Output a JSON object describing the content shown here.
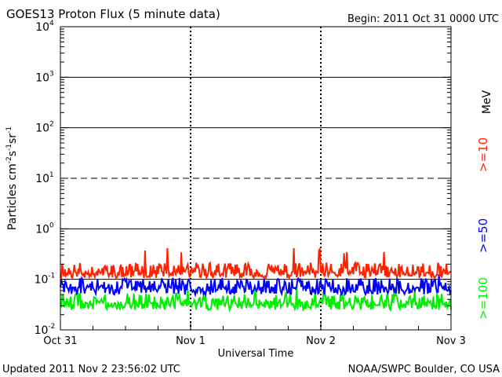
{
  "chart_data": {
    "type": "line",
    "title": "GOES13 Proton Flux (5 minute data)",
    "begin_label": "Begin: 2011 Oct 31 0000 UTC",
    "updated_label": "Updated 2011 Nov  2 23:56:02 UTC",
    "credit_label": "NOAA/SWPC Boulder, CO USA",
    "xlabel": "Universal Time",
    "ylabel_main": "Particles cm",
    "ylabel_sup1": "-2",
    "ylabel_mid1": "s",
    "ylabel_sup2": "-1",
    "ylabel_mid2": "sr",
    "ylabel_sup3": "-1",
    "y_scale": "log",
    "ylim": [
      0.01,
      10000
    ],
    "y_ticks": [
      {
        "base": "10",
        "exp": "-2"
      },
      {
        "base": "10",
        "exp": "-1"
      },
      {
        "base": "10",
        "exp": "0"
      },
      {
        "base": "10",
        "exp": "1"
      },
      {
        "base": "10",
        "exp": "2"
      },
      {
        "base": "10",
        "exp": "3"
      },
      {
        "base": "10",
        "exp": "4"
      }
    ],
    "x_ticks": [
      "Oct 31",
      "Nov 1",
      "Nov 2",
      "Nov 3"
    ],
    "xlim_days": [
      0,
      3
    ],
    "reference_lines": [
      {
        "value": 0.1,
        "style": "solid"
      },
      {
        "value": 1,
        "style": "solid"
      },
      {
        "value": 10,
        "style": "dashed"
      },
      {
        "value": 100,
        "style": "solid"
      },
      {
        "value": 1000,
        "style": "solid"
      }
    ],
    "unit_label": "MeV",
    "series": [
      {
        "name": ">=10",
        "color": "#ff2200",
        "typical": 0.13,
        "min": 0.09,
        "max": 0.42
      },
      {
        "name": ">=50",
        "color": "#0000ff",
        "typical": 0.065,
        "min": 0.04,
        "max": 0.15
      },
      {
        "name": ">=100",
        "color": "#00ee00",
        "typical": 0.032,
        "min": 0.02,
        "max": 0.075
      }
    ]
  }
}
